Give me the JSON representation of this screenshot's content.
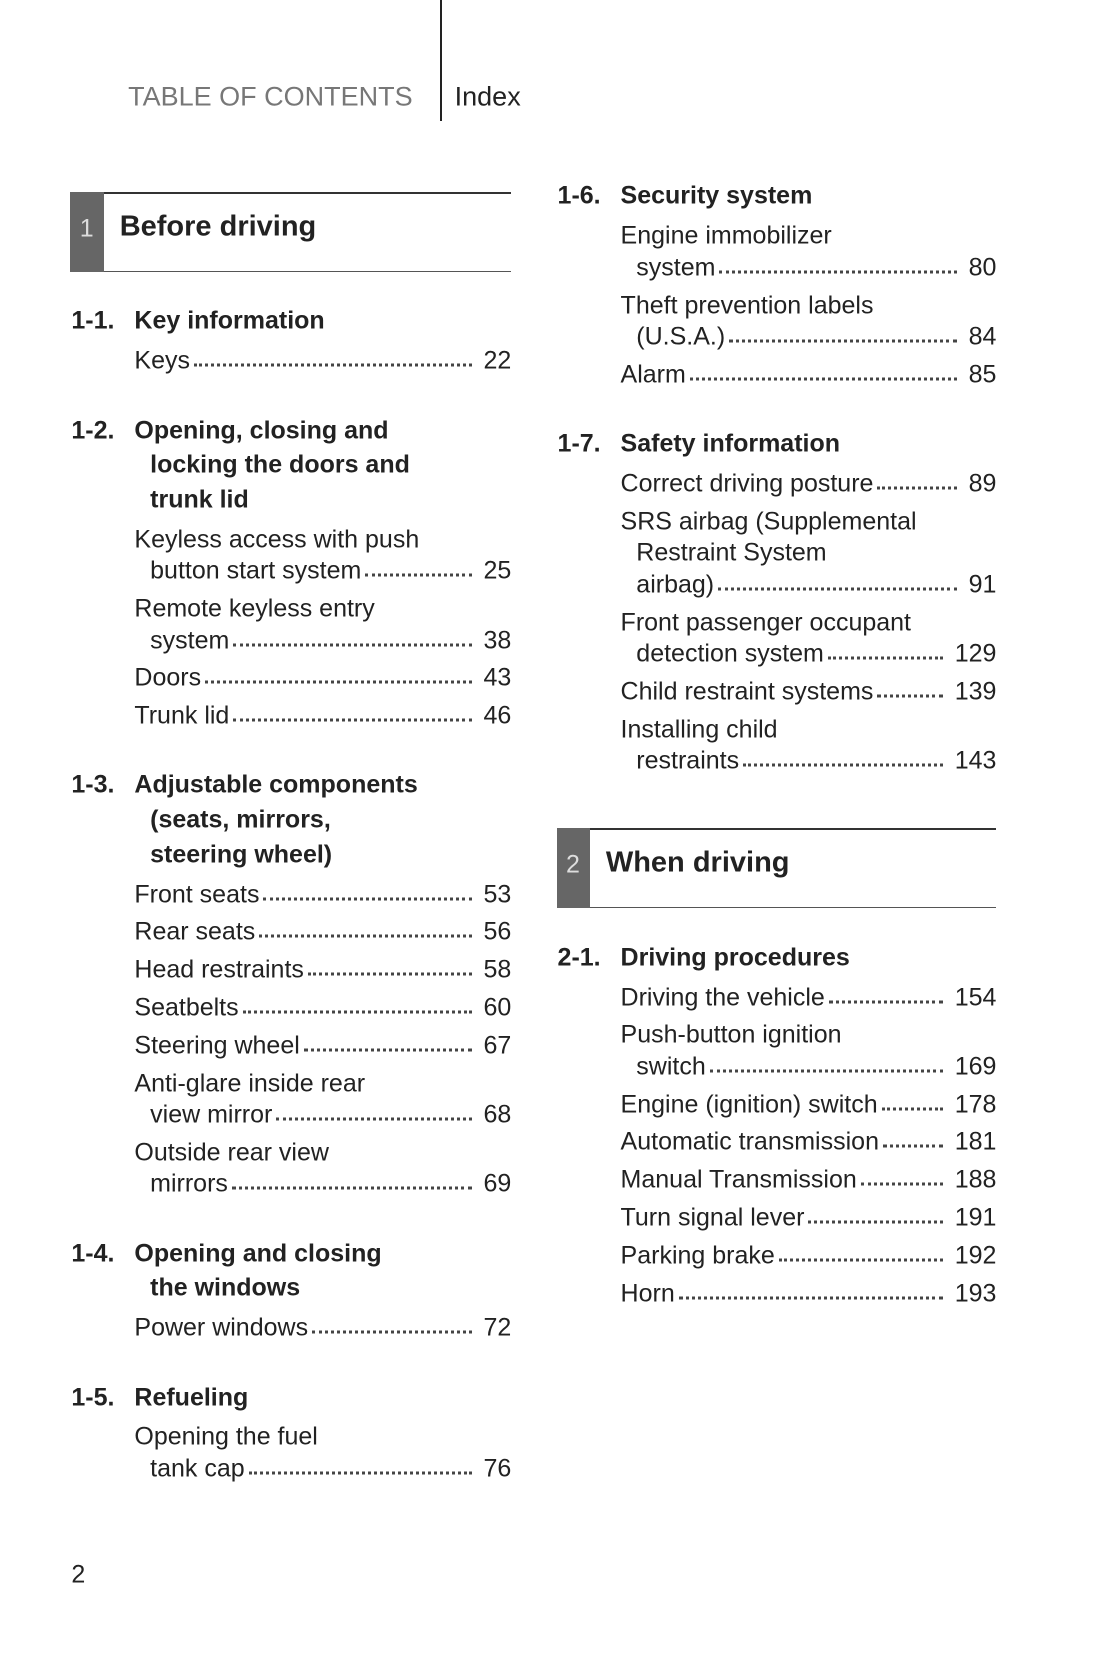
{
  "header": {
    "left": "TABLE OF CONTENTS",
    "right": "Index"
  },
  "columns": [
    [
      {
        "chapter": {
          "number": 1,
          "title": "Before driving"
        }
      },
      {
        "number": "1-1.",
        "title": [
          "Key information"
        ],
        "entries": [
          {
            "text": [
              "Keys"
            ],
            "page": 22
          }
        ]
      },
      {
        "number": "1-2.",
        "title": [
          "Opening, closing and",
          "locking the doors and",
          "trunk lid"
        ],
        "entries": [
          {
            "text": [
              "Keyless access with push",
              "button start system"
            ],
            "page": 25
          },
          {
            "text": [
              "Remote keyless entry",
              "system"
            ],
            "page": 38
          },
          {
            "text": [
              "Doors"
            ],
            "page": 43
          },
          {
            "text": [
              "Trunk lid"
            ],
            "page": 46
          }
        ]
      },
      {
        "number": "1-3.",
        "title": [
          "Adjustable components",
          "(seats, mirrors,",
          "steering wheel)"
        ],
        "entries": [
          {
            "text": [
              "Front seats"
            ],
            "page": 53
          },
          {
            "text": [
              "Rear seats"
            ],
            "page": 56
          },
          {
            "text": [
              "Head restraints"
            ],
            "page": 58
          },
          {
            "text": [
              "Seatbelts"
            ],
            "page": 60
          },
          {
            "text": [
              "Steering wheel"
            ],
            "page": 67
          },
          {
            "text": [
              "Anti-glare inside rear",
              "view mirror"
            ],
            "page": 68
          },
          {
            "text": [
              "Outside rear view",
              "mirrors"
            ],
            "page": 69
          }
        ]
      },
      {
        "number": "1-4.",
        "title": [
          "Opening and closing",
          "the windows"
        ],
        "entries": [
          {
            "text": [
              "Power windows"
            ],
            "page": 72
          }
        ]
      },
      {
        "number": "1-5.",
        "title": [
          "Refueling"
        ],
        "entries": [
          {
            "text": [
              "Opening the fuel",
              "tank cap"
            ],
            "page": 76
          }
        ]
      }
    ],
    [
      {
        "number": "1-6.",
        "title": [
          "Security system"
        ],
        "entries": [
          {
            "text": [
              "Engine immobilizer",
              "system"
            ],
            "page": 80
          },
          {
            "text": [
              "Theft prevention labels",
              "(U.S.A.)"
            ],
            "page": 84
          },
          {
            "text": [
              "Alarm"
            ],
            "page": 85
          }
        ]
      },
      {
        "number": "1-7.",
        "title": [
          "Safety information"
        ],
        "entries": [
          {
            "text": [
              "Correct driving posture"
            ],
            "page": 89
          },
          {
            "text": [
              "SRS airbag (Supplemental",
              "Restraint System",
              "airbag)"
            ],
            "page": 91
          },
          {
            "text": [
              "Front passenger occupant",
              "detection system"
            ],
            "page": 129
          },
          {
            "text": [
              "Child restraint systems"
            ],
            "page": 139
          },
          {
            "text": [
              "Installing child",
              "restraints"
            ],
            "page": 143
          }
        ]
      },
      {
        "chapter": {
          "number": 2,
          "title": "When driving"
        }
      },
      {
        "number": "2-1.",
        "title": [
          "Driving procedures"
        ],
        "entries": [
          {
            "text": [
              "Driving the vehicle"
            ],
            "page": 154
          },
          {
            "text": [
              "Push-button ignition",
              "switch"
            ],
            "page": 169
          },
          {
            "text": [
              "Engine (ignition) switch"
            ],
            "page": 178
          },
          {
            "text": [
              "Automatic transmission"
            ],
            "page": 181
          },
          {
            "text": [
              "Manual Transmission"
            ],
            "page": 188
          },
          {
            "text": [
              "Turn signal lever"
            ],
            "page": 191
          },
          {
            "text": [
              "Parking brake"
            ],
            "page": 192
          },
          {
            "text": [
              "Horn"
            ],
            "page": 193
          }
        ]
      }
    ]
  ],
  "page_number": 2
}
